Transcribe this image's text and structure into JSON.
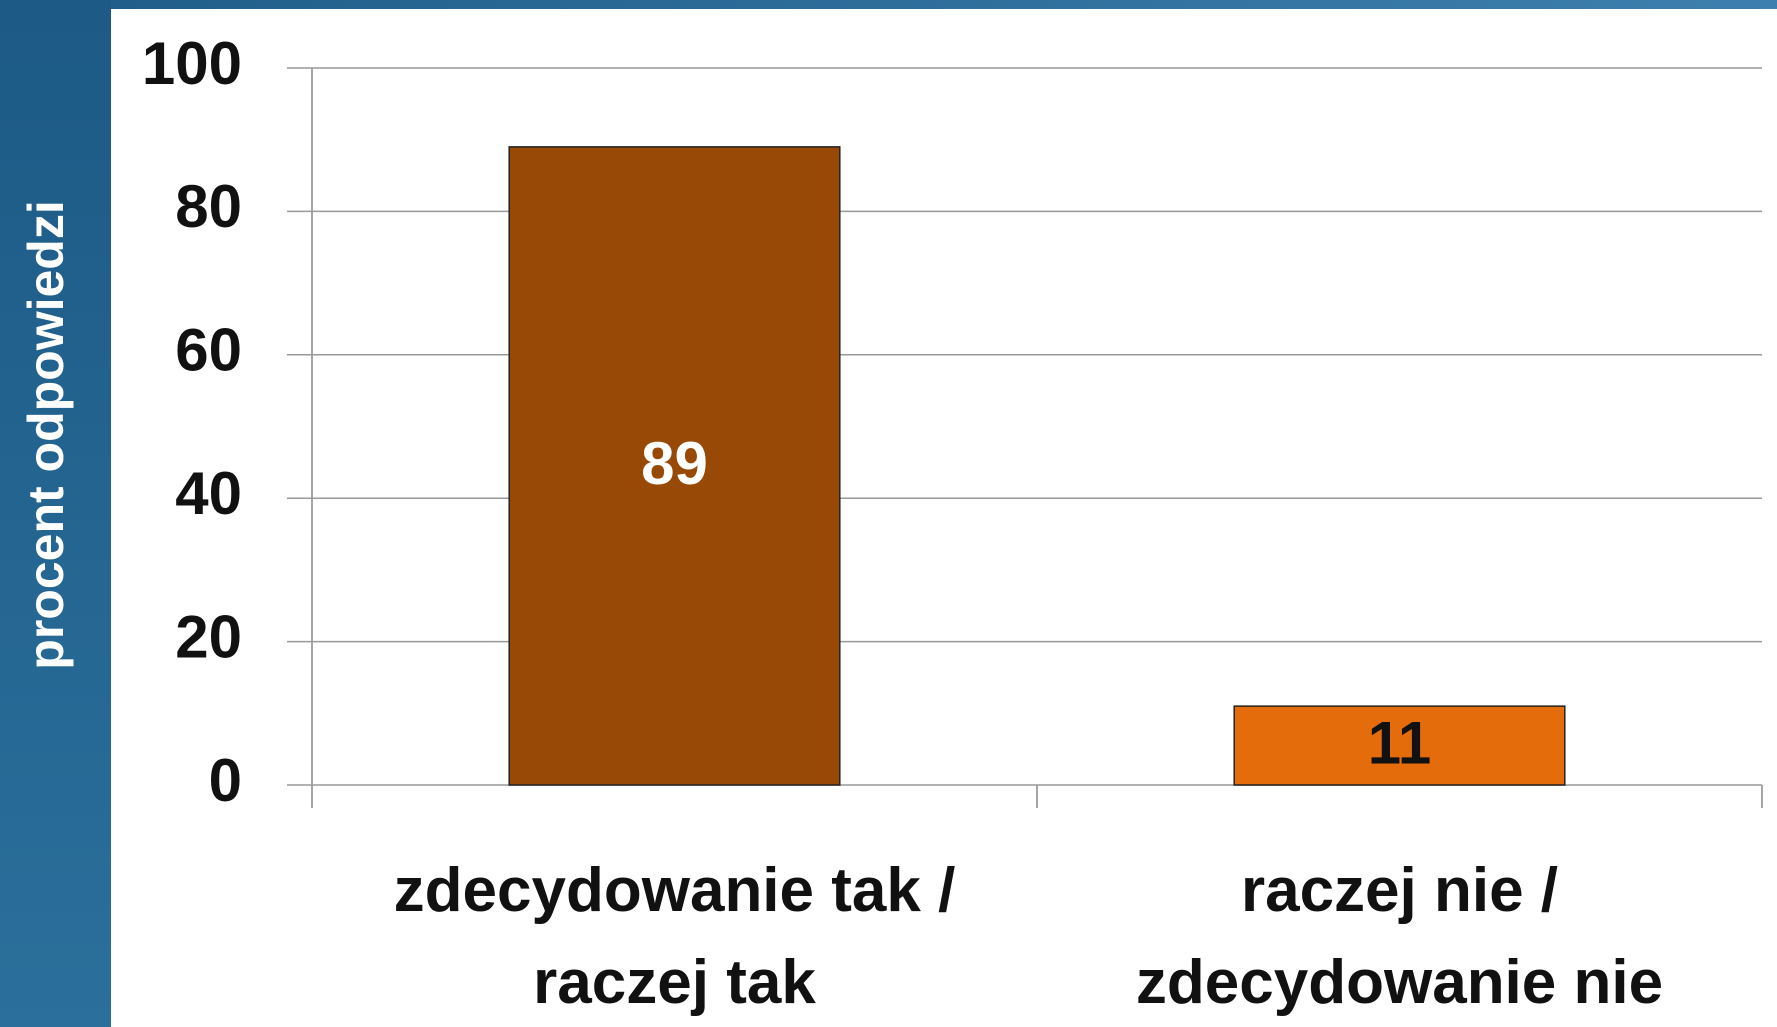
{
  "chart_data": {
    "type": "bar",
    "y_label": "procent odpowiedzi",
    "categories": [
      "zdecydowanie tak / raczej tak",
      "raczej nie / zdecydowanie nie"
    ],
    "values": [
      89,
      11
    ],
    "colors": [
      "#994906",
      "#e46c0a"
    ],
    "value_label_colors": [
      "#ffffff",
      "#111111"
    ],
    "ylim": [
      0,
      100
    ],
    "yticks": [
      0,
      20,
      40,
      60,
      80,
      100
    ],
    "grid": true
  }
}
